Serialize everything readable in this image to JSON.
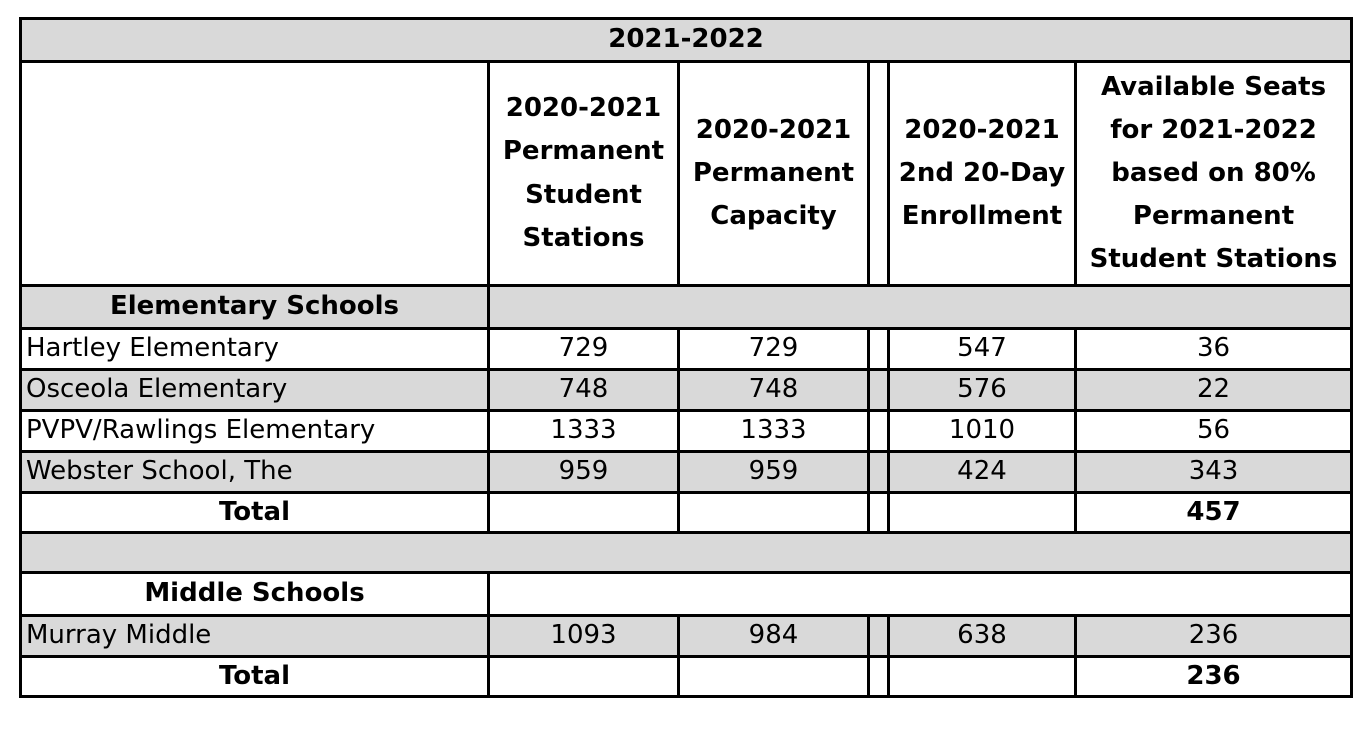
{
  "title": "2021-2022",
  "columns": [
    "2020-2021 Permanent Student Stations",
    "2020-2021 Permanent Capacity",
    "2020-2021 2nd 20-Day Enrollment",
    "Available Seats for 2021-2022 based on 80% Permanent Student Stations"
  ],
  "sections": [
    {
      "name": "Elementary Schools",
      "rows": [
        {
          "school": "Hartley Elementary",
          "stations": "729",
          "capacity": "729",
          "enrollment": "547",
          "available": "36"
        },
        {
          "school": "Osceola Elementary",
          "stations": "748",
          "capacity": "748",
          "enrollment": "576",
          "available": "22"
        },
        {
          "school": "PVPV/Rawlings Elementary",
          "stations": "1333",
          "capacity": "1333",
          "enrollment": "1010",
          "available": "56"
        },
        {
          "school": "Webster School, The",
          "stations": "959",
          "capacity": "959",
          "enrollment": "424",
          "available": "343"
        }
      ],
      "total_label": "Total",
      "total_available": "457"
    },
    {
      "name": "Middle Schools",
      "rows": [
        {
          "school": "Murray Middle",
          "stations": "1093",
          "capacity": "984",
          "enrollment": "638",
          "available": "236"
        }
      ],
      "total_label": "Total",
      "total_available": "236"
    }
  ]
}
